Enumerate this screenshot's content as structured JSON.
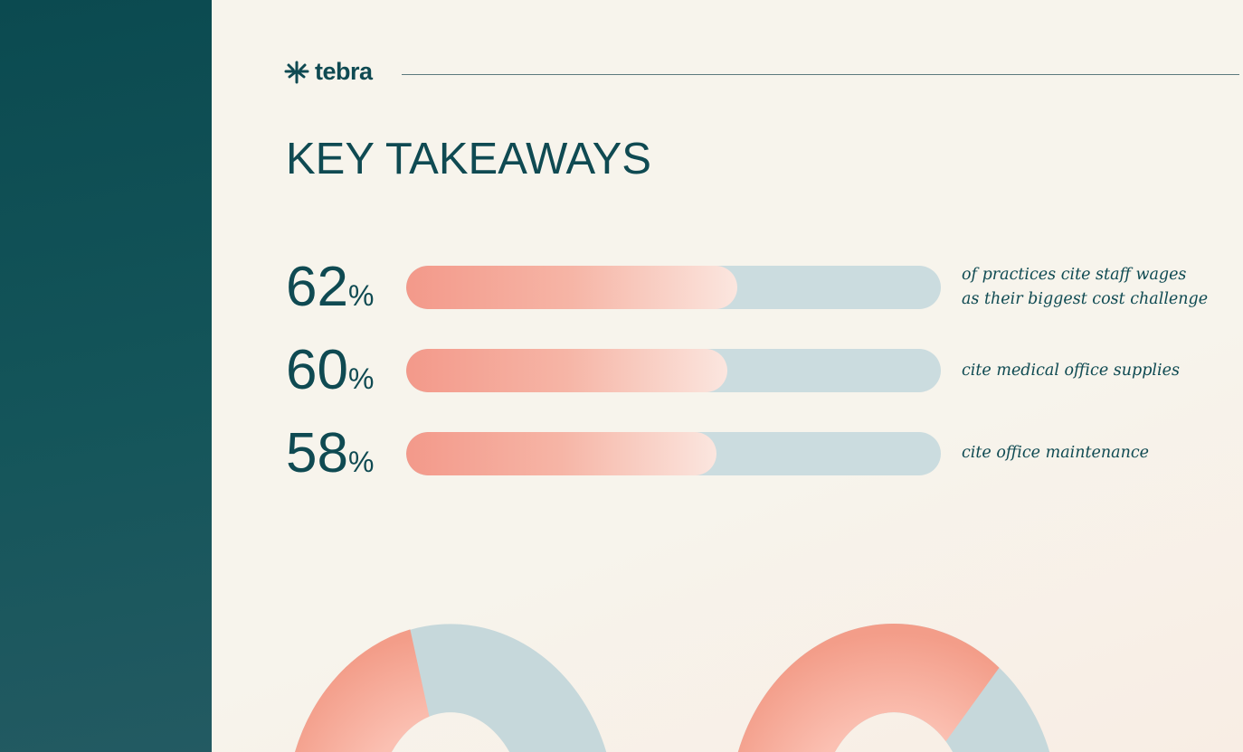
{
  "brand": {
    "name": "tebra",
    "logo_icon": "tebra-tree-icon"
  },
  "title": "KEY TAKEAWAYS",
  "stats": [
    {
      "value": "62",
      "unit": "%",
      "percent": 62,
      "desc_line1": "of practices cite staff wages",
      "desc_line2": "as their biggest cost challenge"
    },
    {
      "value": "60",
      "unit": "%",
      "percent": 60,
      "desc_line1": "cite medical office supplies",
      "desc_line2": ""
    },
    {
      "value": "58",
      "unit": "%",
      "percent": 58,
      "desc_line1": "cite office maintenance",
      "desc_line2": ""
    }
  ],
  "colors": {
    "primary": "#0f4a52",
    "accent": "#f3998a",
    "track": "#cbdcdf",
    "background": "#f7f4ec"
  }
}
